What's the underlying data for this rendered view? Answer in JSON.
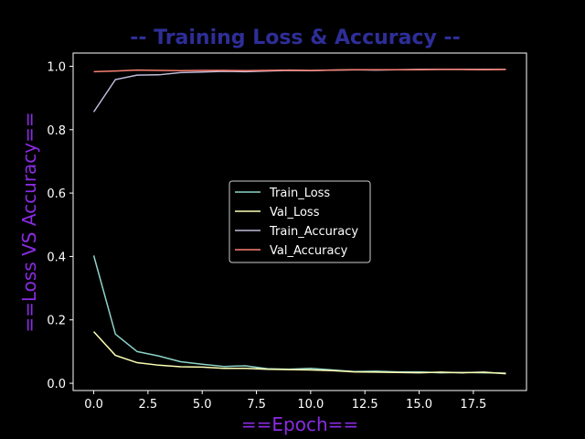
{
  "chart_data": {
    "type": "line",
    "title": "-- Training Loss & Accuracy --",
    "xlabel": "==Epoch==",
    "ylabel": "==Loss VS Accuracy==",
    "xlim": [
      -0.95,
      19.95
    ],
    "ylim": [
      -0.0229,
      1.0417
    ],
    "xticks": [
      0,
      2.5,
      5,
      7.5,
      10,
      12.5,
      15,
      17.5
    ],
    "xtick_labels": [
      "0.0",
      "2.5",
      "5.0",
      "7.5",
      "10.0",
      "12.5",
      "15.0",
      "17.5"
    ],
    "yticks": [
      0,
      0.2,
      0.4,
      0.6,
      0.8,
      1.0
    ],
    "ytick_labels": [
      "0.0",
      "0.2",
      "0.4",
      "0.6",
      "0.8",
      "1.0"
    ],
    "grid": false,
    "legend_position": "center",
    "x": [
      0,
      1,
      2,
      3,
      4,
      5,
      6,
      7,
      8,
      9,
      10,
      11,
      12,
      13,
      14,
      15,
      16,
      17,
      18,
      19
    ],
    "series": [
      {
        "name": "Train_Loss",
        "color": "#8dd3c7",
        "values": [
          0.403,
          0.155,
          0.1,
          0.086,
          0.068,
          0.06,
          0.053,
          0.055,
          0.046,
          0.044,
          0.047,
          0.042,
          0.037,
          0.038,
          0.036,
          0.036,
          0.033,
          0.034,
          0.033,
          0.032
        ]
      },
      {
        "name": "Val_Loss",
        "color": "#feffb3",
        "values": [
          0.163,
          0.088,
          0.065,
          0.057,
          0.052,
          0.051,
          0.047,
          0.047,
          0.044,
          0.043,
          0.042,
          0.04,
          0.036,
          0.035,
          0.034,
          0.033,
          0.035,
          0.033,
          0.035,
          0.03
        ]
      },
      {
        "name": "Train_Accuracy",
        "color": "#bfbbd9",
        "values": [
          0.856,
          0.958,
          0.972,
          0.973,
          0.98,
          0.982,
          0.984,
          0.983,
          0.985,
          0.987,
          0.986,
          0.988,
          0.989,
          0.988,
          0.989,
          0.99,
          0.99,
          0.99,
          0.99,
          0.99
        ]
      },
      {
        "name": "Val_Accuracy",
        "color": "#fa8174",
        "values": [
          0.983,
          0.985,
          0.988,
          0.987,
          0.986,
          0.987,
          0.987,
          0.986,
          0.987,
          0.988,
          0.987,
          0.988,
          0.989,
          0.989,
          0.989,
          0.989,
          0.99,
          0.99,
          0.989,
          0.99
        ]
      }
    ]
  }
}
